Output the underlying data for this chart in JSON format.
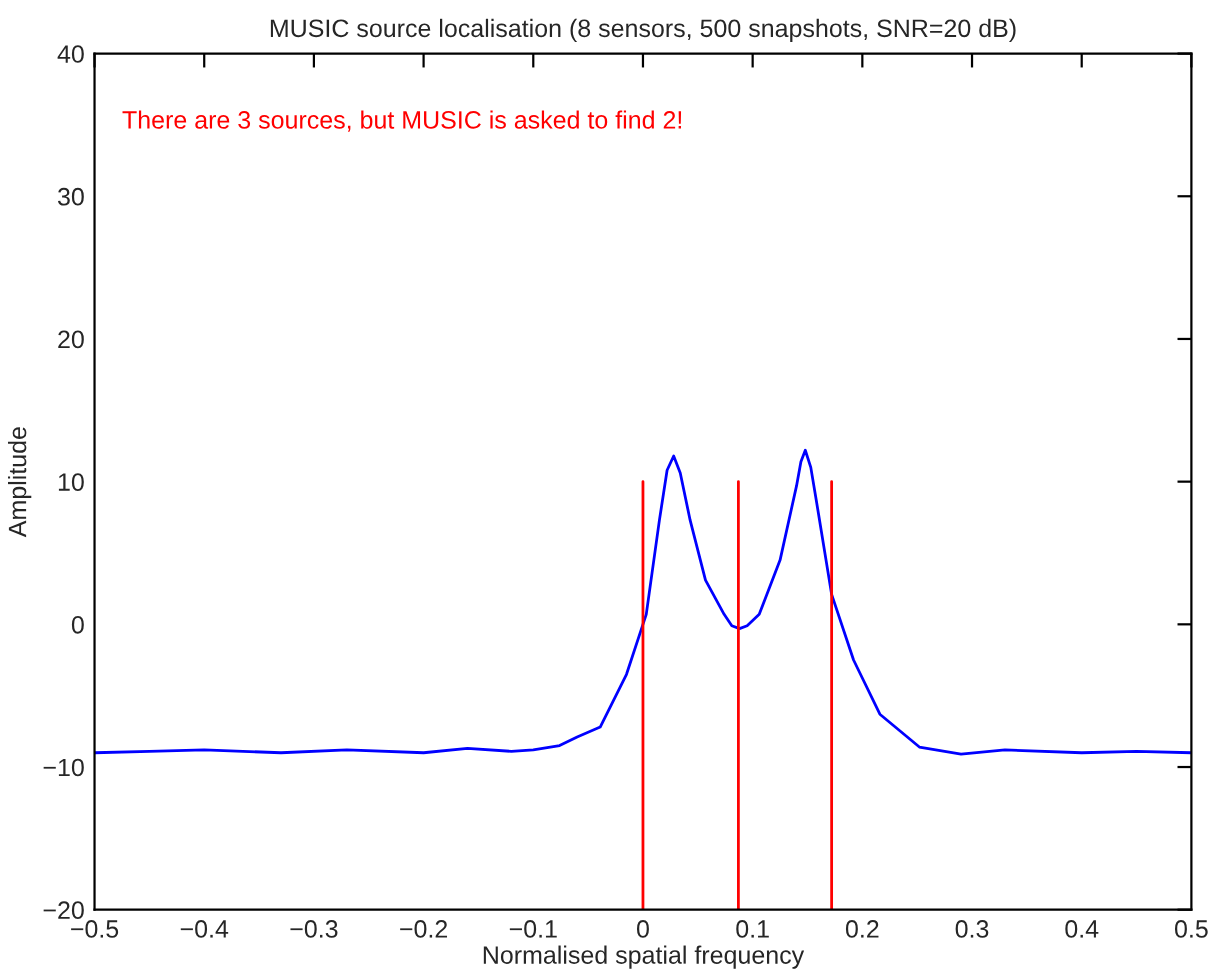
{
  "chart_data": {
    "type": "line",
    "title": "MUSIC source localisation (8 sensors, 500 snapshots, SNR=20 dB)",
    "xlabel": "Normalised spatial frequency",
    "ylabel": "Amplitude",
    "annotations": [
      "There are 3 sources, but MUSIC is asked to find 2!"
    ],
    "series": [
      {
        "color": "#0000ff",
        "x": [
          -0.5,
          -0.45,
          -0.4,
          -0.33,
          -0.27,
          -0.2,
          -0.16,
          -0.12,
          -0.1,
          -0.076,
          -0.06,
          -0.039,
          -0.015,
          0.003,
          0.015,
          0.022,
          0.028,
          0.034,
          0.043,
          0.057,
          0.074,
          0.081,
          0.088,
          0.095,
          0.106,
          0.125,
          0.14,
          0.144,
          0.148,
          0.153,
          0.158,
          0.172,
          0.192,
          0.216,
          0.252,
          0.29,
          0.33,
          0.4,
          0.45,
          0.5
        ],
        "values": [
          -9.0,
          -8.9,
          -8.8,
          -9.0,
          -8.8,
          -9.0,
          -8.7,
          -8.9,
          -8.8,
          -8.5,
          -7.9,
          -7.2,
          -3.5,
          0.7,
          7.3,
          10.8,
          11.8,
          10.6,
          7.3,
          3.1,
          0.7,
          -0.1,
          -0.3,
          -0.1,
          0.7,
          4.5,
          9.7,
          11.4,
          12.2,
          11.0,
          8.7,
          2.1,
          -2.5,
          -6.3,
          -8.6,
          -9.1,
          -8.8,
          -9.0,
          -8.9,
          -9.0
        ]
      },
      {
        "color": "#ff0000",
        "x": [
          0,
          0
        ],
        "values": [
          -20,
          10
        ]
      },
      {
        "color": "#ff0000",
        "x": [
          0.087,
          0.087
        ],
        "values": [
          -20,
          10
        ]
      },
      {
        "color": "#ff0000",
        "x": [
          0.172,
          0.172
        ],
        "values": [
          -20,
          10
        ]
      }
    ],
    "xlim": [
      -0.5,
      0.5
    ],
    "xticks": [
      {
        "value": -0.5,
        "label": "−0.5"
      },
      {
        "value": -0.4,
        "label": "−0.4"
      },
      {
        "value": -0.3,
        "label": "−0.3"
      },
      {
        "value": -0.2,
        "label": "−0.2"
      },
      {
        "value": -0.1,
        "label": "−0.1"
      },
      0,
      0.1,
      0.2,
      0.3,
      0.4,
      0.5
    ],
    "ylim": [
      -20,
      40
    ],
    "yticks": [
      {
        "value": -20,
        "label": "−20"
      },
      {
        "value": -10,
        "label": "−10"
      },
      0,
      10,
      20,
      30,
      40
    ],
    "grid": false,
    "marker": "none",
    "line_style": "solid"
  }
}
